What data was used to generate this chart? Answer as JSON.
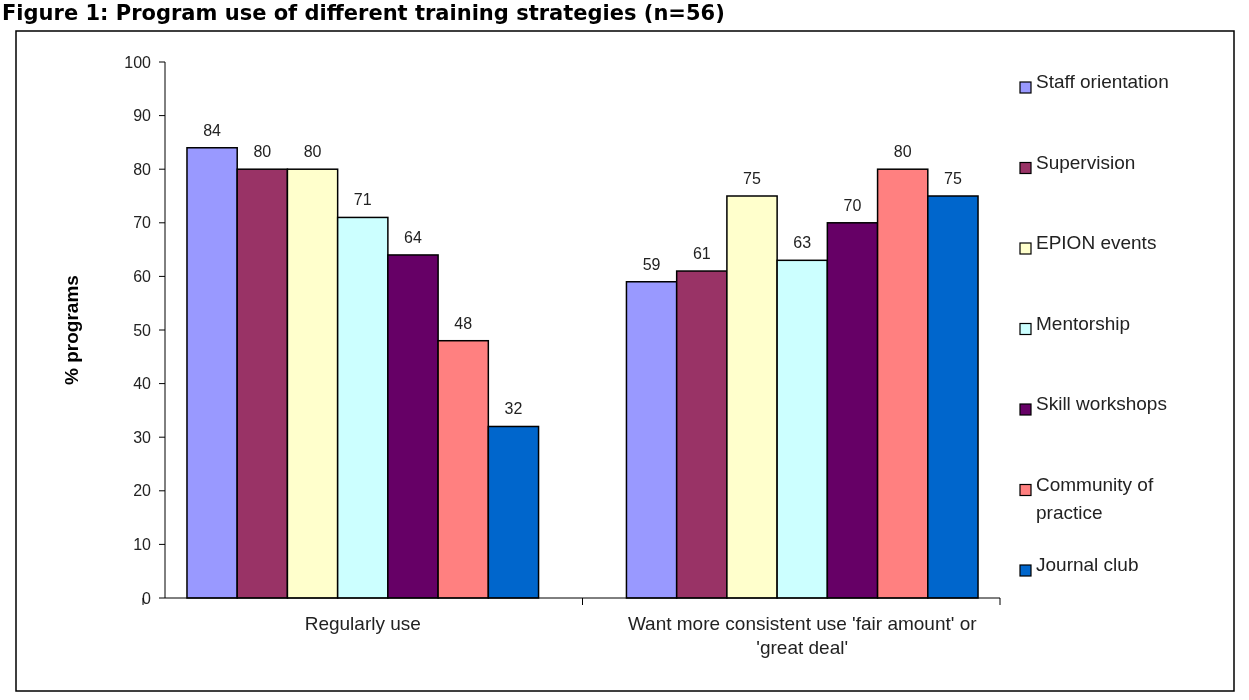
{
  "chart_data": {
    "type": "bar",
    "title": "Figure 1: Program use of different training strategies (n=56)",
    "ylabel": "% programs",
    "categories": [
      "Regularly use",
      "Want more consistent use 'fair amount' or 'great deal'"
    ],
    "series": [
      {
        "name": "Staff orientation",
        "color": "#9999ff",
        "values": [
          84,
          59
        ]
      },
      {
        "name": "Supervision",
        "color": "#993366",
        "values": [
          80,
          61
        ]
      },
      {
        "name": "EPION events",
        "color": "#ffffcc",
        "values": [
          80,
          75
        ]
      },
      {
        "name": "Mentorship",
        "color": "#ccffff",
        "values": [
          71,
          63
        ]
      },
      {
        "name": "Skill workshops",
        "color": "#660066",
        "values": [
          64,
          70
        ]
      },
      {
        "name": "Community of practice",
        "color": "#ff8080",
        "values": [
          48,
          80
        ]
      },
      {
        "name": "Journal club",
        "color": "#0066cc",
        "values": [
          32,
          75
        ]
      }
    ],
    "ylim": [
      0,
      100
    ],
    "yticks": [
      0,
      10,
      20,
      30,
      40,
      50,
      60,
      70,
      80,
      90,
      100
    ],
    "data_labels": true,
    "legend": "right",
    "grid": false
  }
}
